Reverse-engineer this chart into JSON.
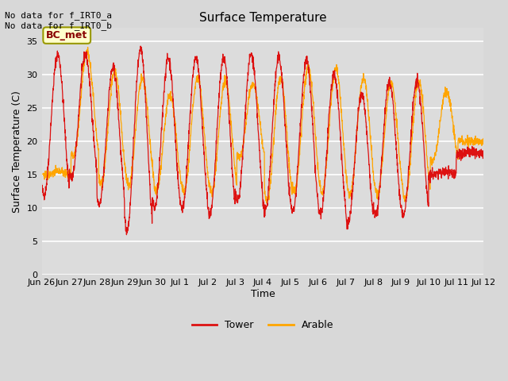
{
  "title": "Surface Temperature",
  "ylabel": "Surface Temperature (C)",
  "xlabel": "Time",
  "ylim": [
    0,
    37
  ],
  "yticks": [
    0,
    5,
    10,
    15,
    20,
    25,
    30,
    35
  ],
  "bg_outer": "#d8d8d8",
  "bg_plot": "#dcdcdc",
  "grid_color": "#ffffff",
  "tower_color": "#dd1111",
  "arable_color": "#FFA500",
  "annotation_text": "No data for f_IRT0_a\nNo data for f_IRT0_b",
  "legend_box_text": "BC_met",
  "legend_box_facecolor": "#ffffcc",
  "legend_box_edgecolor": "#999900",
  "legend_box_textcolor": "#880000",
  "xtick_labels": [
    "Jun 26",
    "Jun 27",
    "Jun 28",
    "Jun 29",
    "Jun 30",
    "Jul 1",
    "Jul 2",
    "Jul 3",
    "Jul 4",
    "Jul 5",
    "Jul 6",
    "Jul 7",
    "Jul 8",
    "Jul 9",
    "Jul 10",
    "Jul 11",
    "Jul 12"
  ],
  "tower_peaks": [
    33.0,
    33.0,
    31.0,
    34.0,
    32.5,
    32.5,
    32.5,
    33.0,
    32.5,
    32.0,
    30.0,
    27.0,
    29.0,
    29.0,
    15.5,
    18.5
  ],
  "tower_mins": [
    12.0,
    14.5,
    10.5,
    6.8,
    10.0,
    10.0,
    8.8,
    11.0,
    9.5,
    9.5,
    9.0,
    7.8,
    9.0,
    9.0,
    15.0,
    18.0
  ],
  "arable_peaks": [
    15.5,
    33.5,
    30.5,
    29.5,
    27.0,
    29.5,
    29.0,
    28.5,
    29.5,
    31.0,
    31.0,
    29.5,
    28.8,
    29.0,
    27.5,
    20.0
  ],
  "arable_mins": [
    15.0,
    17.5,
    13.5,
    13.5,
    12.5,
    12.5,
    12.5,
    17.5,
    11.0,
    12.5,
    12.5,
    12.0,
    12.0,
    11.5,
    17.0,
    20.0
  ],
  "peak_hour": 14,
  "pts_per_day": 144,
  "num_days": 16
}
